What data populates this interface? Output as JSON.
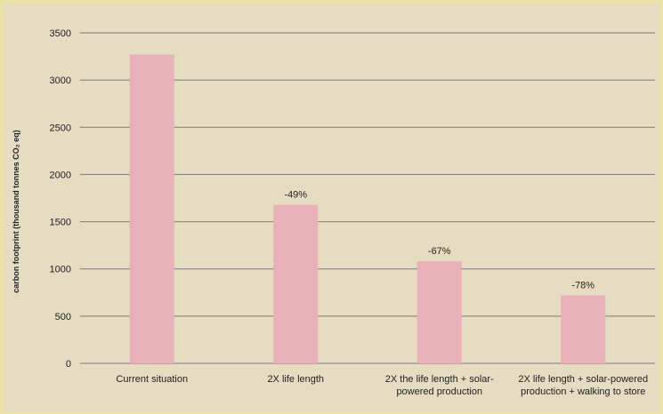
{
  "chart_data": {
    "type": "bar",
    "categories": [
      [
        "Current situation"
      ],
      [
        "2X life length"
      ],
      [
        "2X the life length + solar-",
        "powered production"
      ],
      [
        "2X life length + solar-powered",
        "production + walking to store"
      ]
    ],
    "values": [
      3270,
      1680,
      1080,
      720
    ],
    "data_labels": [
      "",
      "-49%",
      "-67%",
      "-78%"
    ],
    "ylabel": "carbon footprint (thousand tonnes CO₂ eq)",
    "ylim": [
      0,
      3500
    ],
    "yticks": [
      0,
      500,
      1000,
      1500,
      2000,
      2500,
      3000,
      3500
    ],
    "grid": true,
    "colors": {
      "bar": "#e8b0b8",
      "grid": "#7a7a7a",
      "background": "#e6dcc2",
      "border": "#f6f0d0"
    }
  }
}
